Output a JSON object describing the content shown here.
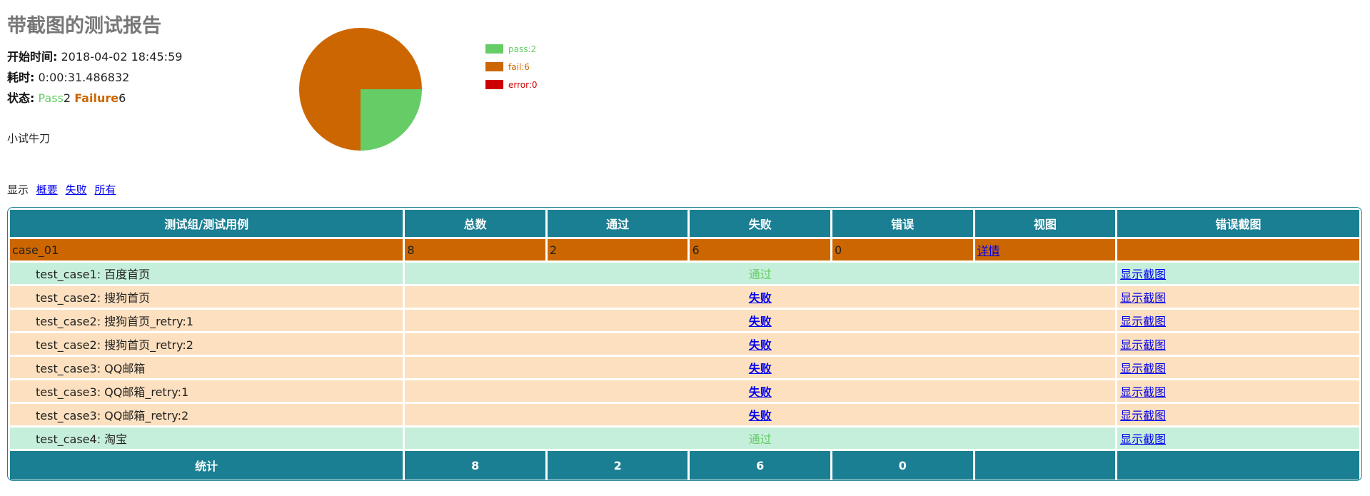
{
  "report": {
    "title": "带截图的测试报告",
    "start_label": "开始时间:",
    "start_value": "2018-04-02 18:45:59",
    "duration_label": "耗时:",
    "duration_value": "0:00:31.486832",
    "status_label": "状态:",
    "pass_label": "Pass",
    "pass_count": "2",
    "fail_label": "Failure",
    "fail_count": "6",
    "description": "小试牛刀"
  },
  "filter": {
    "label": "显示",
    "summary": "概要",
    "failed": "失败",
    "all": "所有"
  },
  "chart_data": {
    "type": "pie",
    "categories": [
      "pass",
      "fail",
      "error"
    ],
    "values": [
      2,
      6,
      0
    ],
    "legend": [
      "pass:2",
      "fail:6",
      "error:0"
    ],
    "colors": [
      "#66cc66",
      "#cc6600",
      "#cc0000"
    ],
    "legend_position": "right"
  },
  "table": {
    "headers": [
      "测试组/测试用例",
      "总数",
      "通过",
      "失败",
      "错误",
      "视图",
      "错误截图"
    ],
    "group": {
      "name": "case_01",
      "total": "8",
      "pass": "2",
      "fail": "6",
      "error": "0",
      "view": "详情"
    },
    "rows": [
      {
        "name": "test_case1: 百度首页",
        "status": "通过",
        "result": "pass",
        "screenshot": "显示截图"
      },
      {
        "name": "test_case2: 搜狗首页",
        "status": "失败",
        "result": "fail",
        "screenshot": "显示截图"
      },
      {
        "name": "test_case2: 搜狗首页_retry:1",
        "status": "失败",
        "result": "fail",
        "screenshot": "显示截图"
      },
      {
        "name": "test_case2: 搜狗首页_retry:2",
        "status": "失败",
        "result": "fail",
        "screenshot": "显示截图"
      },
      {
        "name": "test_case3: QQ邮箱",
        "status": "失败",
        "result": "fail",
        "screenshot": "显示截图"
      },
      {
        "name": "test_case3: QQ邮箱_retry:1",
        "status": "失败",
        "result": "fail",
        "screenshot": "显示截图"
      },
      {
        "name": "test_case3: QQ邮箱_retry:2",
        "status": "失败",
        "result": "fail",
        "screenshot": "显示截图"
      },
      {
        "name": "test_case4: 淘宝",
        "status": "通过",
        "result": "pass",
        "screenshot": "显示截图"
      }
    ],
    "total": {
      "label": "统计",
      "total": "8",
      "pass": "2",
      "fail": "6",
      "error": "0"
    }
  },
  "colors": {
    "header": "#1a7f93",
    "group_row": "#cc6600",
    "pass_row": "#c6efdb",
    "fail_row": "#fde0bf",
    "pass_text": "#66cc66",
    "link": "#0000ee"
  }
}
